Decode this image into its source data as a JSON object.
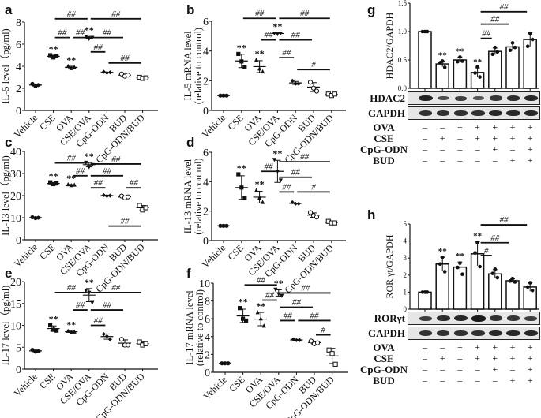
{
  "panel_letters": [
    "a",
    "b",
    "c",
    "d",
    "e",
    "f",
    "g",
    "h"
  ],
  "groups": [
    "Vehicle",
    "CSE",
    "OVA",
    "CSE/OVA",
    "CpG-ODN",
    "BUD",
    "CpG-ODN/BUD"
  ],
  "chart_data": [
    {
      "id": "a",
      "type": "scatter",
      "ylabel": "IL-5 level（pg/ml)",
      "ylim": [
        0,
        8
      ],
      "yticks": [
        0,
        2,
        4,
        6,
        8
      ],
      "categories": [
        "Vehicle",
        "CSE",
        "OVA",
        "CSE/OVA",
        "CpG-ODN",
        "BUD",
        "CpG-ODN/BUD"
      ],
      "points": [
        [
          2.4,
          2.2,
          2.3
        ],
        [
          5.0,
          4.8,
          4.9
        ],
        [
          4.0,
          3.8,
          3.9
        ],
        [
          6.7,
          6.5,
          6.6
        ],
        [
          3.5,
          3.4,
          3.45
        ],
        [
          3.3,
          3.1,
          3.2
        ],
        [
          3.0,
          2.9,
          2.95
        ]
      ],
      "means": [
        2.3,
        4.9,
        3.9,
        6.6,
        3.45,
        3.2,
        2.95
      ],
      "sd": [
        0.1,
        0.1,
        0.1,
        0.1,
        0.05,
        0.1,
        0.05
      ],
      "markers": [
        "circle",
        "square",
        "triangle",
        "tri-down",
        "diamond",
        "open-circle",
        "open-square"
      ],
      "stars": [
        null,
        "**",
        "**",
        "**",
        null,
        null,
        null
      ],
      "brackets": [
        {
          "from": 1,
          "to": 3,
          "y": 8.3,
          "label": "##"
        },
        {
          "from": 3,
          "to": 6,
          "y": 8.3,
          "label": "##"
        },
        {
          "from": 1,
          "to": 2,
          "y": 6.6,
          "label": "##"
        },
        {
          "from": 2,
          "to": 3,
          "y": 6.6,
          "label": "##"
        },
        {
          "from": 3,
          "to": 5,
          "y": 6.6,
          "label": "##"
        },
        {
          "from": 3,
          "to": 4,
          "y": 5.3,
          "label": "##"
        },
        {
          "from": 4,
          "to": 6,
          "y": 4.3,
          "label": "##"
        }
      ]
    },
    {
      "id": "b",
      "type": "scatter",
      "ylabel": "IL-5  mRNA level\n(relative to control)",
      "ylim": [
        0,
        6
      ],
      "yticks": [
        0,
        2,
        4,
        6
      ],
      "categories": [
        "Vehicle",
        "CSE",
        "OVA",
        "CSE/OVA",
        "CpG-ODN",
        "BUD",
        "CpG-ODN/BUD"
      ],
      "points": [
        [
          1.0,
          1.0,
          1.0
        ],
        [
          3.8,
          3.3,
          2.9
        ],
        [
          3.4,
          2.8,
          2.6
        ],
        [
          5.2,
          5.15,
          5.2
        ],
        [
          2.0,
          1.8,
          1.8
        ],
        [
          1.9,
          1.5,
          1.3
        ],
        [
          1.1,
          1.0,
          1.1
        ]
      ],
      "means": [
        1.0,
        3.33,
        2.95,
        5.18,
        1.85,
        1.57,
        1.07
      ],
      "sd": [
        0.0,
        0.45,
        0.4,
        0.05,
        0.1,
        0.3,
        0.05
      ],
      "markers": [
        "circle",
        "square",
        "triangle",
        "tri-down",
        "diamond",
        "open-circle",
        "open-square"
      ],
      "stars": [
        null,
        "**",
        "**",
        "**",
        null,
        null,
        null
      ],
      "brackets": [
        {
          "from": 1,
          "to": 3,
          "y": 6.2,
          "label": "##"
        },
        {
          "from": 3,
          "to": 6,
          "y": 6.2,
          "label": "##"
        },
        {
          "from": 2,
          "to": 3,
          "y": 4.75,
          "label": "##"
        },
        {
          "from": 3,
          "to": 5,
          "y": 4.75,
          "label": "##"
        },
        {
          "from": 3,
          "to": 4,
          "y": 3.55,
          "label": "##"
        },
        {
          "from": 4,
          "to": 6,
          "y": 2.75,
          "label": "#"
        }
      ]
    },
    {
      "id": "c",
      "type": "scatter",
      "ylabel": "IL-13  level（pg/ml)",
      "ylim": [
        0,
        40
      ],
      "yticks": [
        0,
        10,
        20,
        30,
        40
      ],
      "categories": [
        "Vehicle",
        "CSE",
        "OVA",
        "CSE/OVA",
        "CpG-ODN",
        "BUD",
        "CpG-ODN/BUD"
      ],
      "points": [
        [
          10.2,
          9.8,
          10.0
        ],
        [
          26.0,
          25.2,
          25.5
        ],
        [
          25.0,
          24.6,
          24.8
        ],
        [
          35.0,
          33.0,
          34.0
        ],
        [
          20.2,
          19.8,
          20.0
        ],
        [
          19.8,
          19.0,
          19.4
        ],
        [
          15.5,
          13.5,
          14.5
        ]
      ],
      "means": [
        10.0,
        25.5,
        24.8,
        34.0,
        20.0,
        19.4,
        14.5
      ],
      "sd": [
        0.2,
        0.4,
        0.2,
        1.0,
        0.2,
        0.4,
        1.0
      ],
      "markers": [
        "circle",
        "square",
        "triangle",
        "tri-down",
        "diamond",
        "open-circle",
        "open-square"
      ],
      "stars": [
        null,
        "**",
        "**",
        "**",
        null,
        null,
        null
      ],
      "brackets": [
        {
          "from": 1,
          "to": 3,
          "y": 34.8,
          "label": "##"
        },
        {
          "from": 3,
          "to": 6,
          "y": 34.3,
          "label": "##"
        },
        {
          "from": 2,
          "to": 3,
          "y": 29.0,
          "label": "##"
        },
        {
          "from": 3,
          "to": 5,
          "y": 29.0,
          "label": "##"
        },
        {
          "from": 3,
          "to": 4,
          "y": 23.5,
          "label": "##"
        },
        {
          "from": 5,
          "to": 6,
          "y": 23.5,
          "label": "##"
        },
        {
          "from": 4,
          "to": 6,
          "y": 6.2,
          "label": "##"
        }
      ]
    },
    {
      "id": "d",
      "type": "scatter",
      "ylabel": "IL-13  mRNA level\n(relative to control)",
      "ylim": [
        0,
        6
      ],
      "yticks": [
        0,
        2,
        4,
        6
      ],
      "categories": [
        "Vehicle",
        "CSE",
        "OVA",
        "CSE/OVA",
        "CpG-ODN",
        "BUD",
        "CpG-ODN/BUD"
      ],
      "points": [
        [
          1.0,
          1.0,
          1.0
        ],
        [
          4.5,
          3.6,
          2.9
        ],
        [
          3.4,
          2.9,
          2.6
        ],
        [
          5.5,
          4.7,
          4.1
        ],
        [
          2.6,
          2.5,
          2.5
        ],
        [
          1.9,
          1.7,
          1.6
        ],
        [
          1.3,
          1.2,
          1.2
        ]
      ],
      "means": [
        1.0,
        3.6,
        2.95,
        4.7,
        2.53,
        1.73,
        1.23
      ],
      "sd": [
        0.0,
        0.8,
        0.4,
        0.75,
        0.05,
        0.15,
        0.05
      ],
      "markers": [
        "circle",
        "square",
        "triangle",
        "tri-down",
        "diamond",
        "open-circle",
        "open-square"
      ],
      "stars": [
        null,
        "**",
        "**",
        "**",
        null,
        null,
        null
      ],
      "brackets": [
        {
          "from": 2,
          "to": 3,
          "y": 4.7,
          "label": "##"
        },
        {
          "from": 3,
          "to": 6,
          "y": 5.35,
          "label": "##"
        },
        {
          "from": 3,
          "to": 5,
          "y": 4.3,
          "label": "##"
        },
        {
          "from": 3,
          "to": 4,
          "y": 3.3,
          "label": "##"
        },
        {
          "from": 4,
          "to": 6,
          "y": 3.3,
          "label": "#"
        }
      ]
    },
    {
      "id": "e",
      "type": "scatter",
      "ylabel": "IL-17  level（pg/ml)",
      "ylim": [
        0,
        20
      ],
      "yticks": [
        0,
        5,
        10,
        15,
        20
      ],
      "categories": [
        "Vehicle",
        "CSE",
        "OVA",
        "CSE/OVA",
        "CpG-ODN",
        "BUD",
        "CpG-ODN/BUD"
      ],
      "points": [
        [
          4.4,
          4.0,
          4.1
        ],
        [
          10.0,
          9.0,
          8.8
        ],
        [
          8.7,
          8.4,
          8.5
        ],
        [
          18.0,
          17.5,
          15.2
        ],
        [
          8.0,
          7.5,
          6.8
        ],
        [
          6.8,
          5.5,
          5.5
        ],
        [
          6.2,
          5.5,
          5.8
        ]
      ],
      "means": [
        4.17,
        9.27,
        8.53,
        16.9,
        7.43,
        5.93,
        5.83
      ],
      "sd": [
        0.2,
        0.6,
        0.15,
        1.5,
        0.6,
        0.75,
        0.35
      ],
      "markers": [
        "circle",
        "square",
        "triangle",
        "tri-down",
        "diamond",
        "open-circle",
        "open-square"
      ],
      "stars": [
        null,
        "**",
        "**",
        "**",
        null,
        null,
        null
      ],
      "brackets": [
        {
          "from": 1,
          "to": 3,
          "y": 17.5,
          "label": "##"
        },
        {
          "from": 3,
          "to": 6,
          "y": 17.5,
          "label": "##"
        },
        {
          "from": 2,
          "to": 3,
          "y": 13.5,
          "label": "##"
        },
        {
          "from": 3,
          "to": 5,
          "y": 13.5,
          "label": "##"
        },
        {
          "from": 3,
          "to": 4,
          "y": 10.0,
          "label": "##"
        }
      ]
    },
    {
      "id": "f",
      "type": "scatter",
      "ylabel": "IL-17  mRNA level\n(relative to control)",
      "ylim": [
        0,
        10
      ],
      "yticks": [
        0,
        2,
        4,
        6,
        8,
        10
      ],
      "categories": [
        "Vehicle",
        "CSE",
        "OVA",
        "CSE/OVA",
        "CpG-ODN",
        "BUD",
        "CpG-ODN/BUD"
      ],
      "points": [
        [
          1.0,
          1.0,
          1.0
        ],
        [
          7.2,
          6.0,
          5.8
        ],
        [
          6.7,
          6.0,
          5.2
        ],
        [
          9.3,
          8.8,
          8.6
        ],
        [
          3.7,
          3.6,
          3.6
        ],
        [
          3.5,
          3.2,
          3.3
        ],
        [
          2.5,
          2.1,
          0.9
        ]
      ],
      "means": [
        1.0,
        6.33,
        5.97,
        8.9,
        3.63,
        3.33,
        1.83
      ],
      "sd": [
        0.0,
        0.75,
        0.75,
        0.35,
        0.06,
        0.15,
        0.85
      ],
      "markers": [
        "circle",
        "square",
        "triangle",
        "tri-down",
        "diamond",
        "open-circle",
        "open-square"
      ],
      "stars": [
        null,
        "**",
        "**",
        "**",
        null,
        null,
        null
      ],
      "brackets": [
        {
          "from": 1,
          "to": 3,
          "y": 9.8,
          "label": "##"
        },
        {
          "from": 3,
          "to": 6,
          "y": 8.9,
          "label": "##"
        },
        {
          "from": 2,
          "to": 3,
          "y": 8.1,
          "label": "##"
        },
        {
          "from": 3,
          "to": 5,
          "y": 7.3,
          "label": "##"
        },
        {
          "from": 3,
          "to": 4,
          "y": 5.8,
          "label": "##"
        },
        {
          "from": 4,
          "to": 6,
          "y": 5.8,
          "label": "##"
        },
        {
          "from": 5,
          "to": 6,
          "y": 4.2,
          "label": "#"
        }
      ]
    },
    {
      "id": "g",
      "type": "bar",
      "ylabel": "HDAC2/GAPDH",
      "ylim": [
        0,
        1.5
      ],
      "yticks": [
        0.0,
        0.5,
        1.0,
        1.5
      ],
      "ytick_labels": [
        "0.0",
        "0.5",
        "1.0",
        "1.5"
      ],
      "values": [
        1.0,
        0.43,
        0.5,
        0.28,
        0.65,
        0.73,
        0.86
      ],
      "points": [
        [
          1.0,
          1.0,
          1.0
        ],
        [
          0.48,
          0.45,
          0.37
        ],
        [
          0.55,
          0.47,
          0.48
        ],
        [
          0.38,
          0.27,
          0.2
        ],
        [
          0.72,
          0.6,
          0.64
        ],
        [
          0.8,
          0.67,
          0.72
        ],
        [
          0.97,
          0.74,
          0.86
        ]
      ],
      "sd": [
        0.0,
        0.05,
        0.05,
        0.08,
        0.06,
        0.07,
        0.12
      ],
      "stars": [
        null,
        "**",
        "**",
        "**",
        null,
        null,
        null
      ],
      "brackets": [
        {
          "from": 3,
          "to": 6,
          "y": 1.35,
          "label": "##"
        },
        {
          "from": 3,
          "to": 5,
          "y": 1.13,
          "label": "##"
        },
        {
          "from": 3,
          "to": 4,
          "y": 0.88,
          "label": "##"
        }
      ],
      "blots": [
        {
          "label": "HDAC2",
          "intensity": [
            0.9,
            0.45,
            0.6,
            0.35,
            0.7,
            0.8,
            0.85
          ]
        },
        {
          "label": "GAPDH",
          "intensity": [
            0.75,
            0.75,
            0.75,
            0.75,
            0.85,
            0.85,
            0.85
          ]
        }
      ],
      "conditions": [
        {
          "label": "OVA",
          "signs": [
            "-",
            "-",
            "+",
            "+",
            "+",
            "+",
            "+"
          ]
        },
        {
          "label": "CSE",
          "signs": [
            "-",
            "+",
            "-",
            "+",
            "+",
            "+",
            "+"
          ]
        },
        {
          "label": "CpG-ODN",
          "signs": [
            "-",
            "-",
            "-",
            "-",
            "+",
            "-",
            "+"
          ]
        },
        {
          "label": "BUD",
          "signs": [
            "-",
            "-",
            "-",
            "-",
            "-",
            "+",
            "+"
          ]
        }
      ]
    },
    {
      "id": "h",
      "type": "bar",
      "ylabel": "ROR γt/GAPDH",
      "ylim": [
        0,
        5
      ],
      "yticks": [
        0,
        1,
        2,
        3,
        4,
        5
      ],
      "ytick_labels": [
        "0",
        "1",
        "2",
        "3",
        "4",
        "5"
      ],
      "values": [
        1.0,
        2.65,
        2.47,
        3.25,
        2.07,
        1.67,
        1.3
      ],
      "points": [
        [
          1.0,
          1.0,
          1.0
        ],
        [
          3.05,
          2.65,
          2.2
        ],
        [
          2.7,
          2.45,
          2.05
        ],
        [
          3.9,
          3.3,
          2.5
        ],
        [
          2.35,
          2.1,
          1.85
        ],
        [
          1.8,
          1.65,
          1.6
        ],
        [
          1.55,
          1.3,
          1.1
        ]
      ],
      "sd": [
        0.0,
        0.4,
        0.3,
        0.7,
        0.25,
        0.1,
        0.25
      ],
      "stars": [
        null,
        "**",
        "**",
        "**",
        null,
        null,
        null
      ],
      "brackets": [
        {
          "from": 3,
          "to": 6,
          "y": 4.95,
          "label": "##"
        },
        {
          "from": 3,
          "to": 5,
          "y": 3.9,
          "label": "##"
        },
        {
          "from": 3,
          "to": 4,
          "y": 3.15,
          "label": "#"
        }
      ],
      "blots": [
        {
          "label": "RORγt",
          "intensity": [
            0.6,
            0.8,
            0.85,
            1.0,
            0.75,
            0.7,
            0.6
          ]
        },
        {
          "label": "GAPDH",
          "intensity": [
            0.75,
            0.75,
            0.75,
            0.75,
            0.85,
            0.85,
            0.85
          ]
        }
      ],
      "conditions": [
        {
          "label": "OVA",
          "signs": [
            "-",
            "-",
            "+",
            "+",
            "+",
            "+",
            "+"
          ]
        },
        {
          "label": "CSE",
          "signs": [
            "-",
            "+",
            "-",
            "+",
            "+",
            "+",
            "+"
          ]
        },
        {
          "label": "CpG-ODN",
          "signs": [
            "-",
            "-",
            "-",
            "-",
            "+",
            "-",
            "+"
          ]
        },
        {
          "label": "BUD",
          "signs": [
            "-",
            "-",
            "-",
            "-",
            "-",
            "+",
            "+"
          ]
        }
      ]
    }
  ]
}
